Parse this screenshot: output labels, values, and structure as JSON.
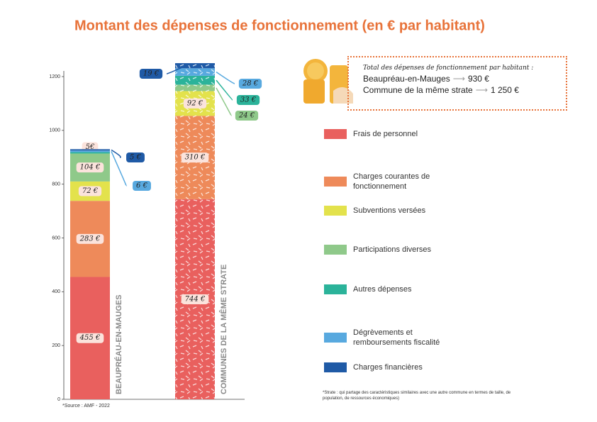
{
  "chart_data": {
    "type": "stacked-bar",
    "title": "Montant des dépenses de fonctionnement (en € par habitant)",
    "categories": [
      "BEAUPRÉAU-EN-MAUGES",
      "COMMUNES DE LA MÊME STRATE"
    ],
    "series": [
      {
        "name": "Frais de personnel",
        "color": "#e9605e",
        "values": [
          455,
          744
        ],
        "value_labels": [
          "455 €",
          "744 €"
        ]
      },
      {
        "name": "Charges courantes de fonctionnement",
        "color": "#ee8a5a",
        "values": [
          283,
          310
        ],
        "value_labels": [
          "283 €",
          "310 €"
        ]
      },
      {
        "name": "Subventions versées",
        "color": "#e3e24c",
        "values": [
          72,
          92
        ],
        "value_labels": [
          "72 €",
          "92 €"
        ]
      },
      {
        "name": "Participations diverses",
        "color": "#8fc98a",
        "values": [
          104,
          24
        ],
        "value_labels": [
          "104 €",
          "24 €"
        ]
      },
      {
        "name": "Autres dépenses",
        "color": "#2bb39a",
        "values": [
          5,
          33
        ],
        "value_labels": [
          "5€",
          "33 €"
        ]
      },
      {
        "name": "Dégrèvements et remboursements fiscalité",
        "color": "#58a9df",
        "values": [
          6,
          28
        ],
        "value_labels": [
          "6 €",
          "28 €"
        ]
      },
      {
        "name": "Charges financières",
        "color": "#1f5aa6",
        "values": [
          5,
          19
        ],
        "value_labels": [
          "5 €",
          "19 €"
        ]
      }
    ],
    "ylim": [
      0,
      1200
    ],
    "yticks": [
      0,
      200,
      400,
      600,
      800,
      1000,
      1200
    ],
    "source": "*Source : AMF - 2022",
    "note": "*Strate : qui partage des caractéristiques similaires avec une autre commune en termes de taille, de population, de ressources économiques)"
  },
  "totals": {
    "heading": "Total des dépenses de fonctionnement par habitant :",
    "rows": [
      {
        "label": "Beaupréau-en-Mauges",
        "value": "930 €"
      },
      {
        "label": "Commune de la même strate",
        "value": "1 250 €"
      }
    ]
  }
}
